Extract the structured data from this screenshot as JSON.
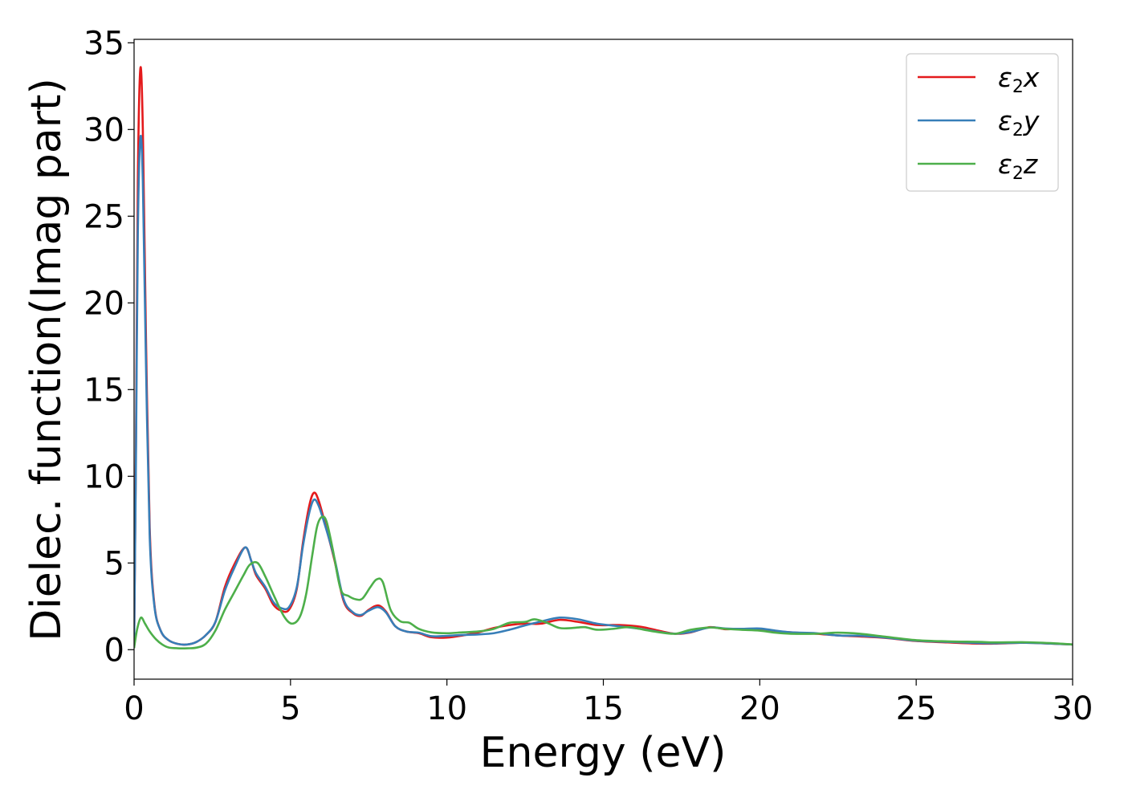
{
  "chart_data": {
    "type": "line",
    "xlabel": "Energy (eV)",
    "ylabel": "Dielec. function(Imag part)",
    "xlim": [
      0,
      30
    ],
    "ylim": [
      -1.7,
      35.2
    ],
    "xticks": [
      0,
      5,
      10,
      15,
      20,
      25,
      30
    ],
    "yticks": [
      0,
      5,
      10,
      15,
      20,
      25,
      30,
      35
    ],
    "grid": false,
    "legend_position": "top-right",
    "series": [
      {
        "name": "ε2x",
        "legend": {
          "symbol": "ε",
          "sub": "2",
          "tail": "x"
        },
        "color": "#e41a1c",
        "points": [
          [
            0,
            0.1
          ],
          [
            0.06,
            12
          ],
          [
            0.12,
            27
          ],
          [
            0.2,
            33.5
          ],
          [
            0.28,
            30
          ],
          [
            0.38,
            18
          ],
          [
            0.5,
            7
          ],
          [
            0.65,
            2.6
          ],
          [
            0.85,
            1.1
          ],
          [
            1.1,
            0.55
          ],
          [
            1.4,
            0.33
          ],
          [
            1.7,
            0.3
          ],
          [
            2.0,
            0.45
          ],
          [
            2.3,
            0.85
          ],
          [
            2.6,
            1.6
          ],
          [
            2.9,
            3.6
          ],
          [
            3.2,
            4.9
          ],
          [
            3.55,
            5.9
          ],
          [
            3.75,
            5.1
          ],
          [
            3.9,
            4.3
          ],
          [
            4.2,
            3.5
          ],
          [
            4.45,
            2.6
          ],
          [
            4.7,
            2.25
          ],
          [
            4.95,
            2.3
          ],
          [
            5.2,
            3.5
          ],
          [
            5.4,
            6.2
          ],
          [
            5.6,
            8.3
          ],
          [
            5.75,
            9.05
          ],
          [
            5.9,
            8.6
          ],
          [
            6.1,
            7.3
          ],
          [
            6.4,
            5.2
          ],
          [
            6.7,
            2.8
          ],
          [
            7.0,
            2.1
          ],
          [
            7.25,
            1.95
          ],
          [
            7.5,
            2.3
          ],
          [
            7.8,
            2.55
          ],
          [
            8.05,
            2.2
          ],
          [
            8.35,
            1.35
          ],
          [
            8.7,
            1.05
          ],
          [
            9.1,
            0.95
          ],
          [
            9.5,
            0.72
          ],
          [
            10.0,
            0.7
          ],
          [
            10.5,
            0.82
          ],
          [
            11.0,
            1.0
          ],
          [
            11.5,
            1.25
          ],
          [
            12.0,
            1.42
          ],
          [
            12.5,
            1.5
          ],
          [
            13.0,
            1.5
          ],
          [
            13.6,
            1.72
          ],
          [
            14.2,
            1.6
          ],
          [
            14.8,
            1.42
          ],
          [
            15.5,
            1.42
          ],
          [
            16.2,
            1.32
          ],
          [
            16.8,
            1.08
          ],
          [
            17.3,
            0.92
          ],
          [
            17.8,
            1.0
          ],
          [
            18.4,
            1.3
          ],
          [
            18.9,
            1.18
          ],
          [
            19.4,
            1.2
          ],
          [
            20.0,
            1.18
          ],
          [
            20.5,
            1.08
          ],
          [
            21.0,
            1.0
          ],
          [
            21.8,
            0.92
          ],
          [
            22.5,
            0.82
          ],
          [
            23.2,
            0.76
          ],
          [
            24.0,
            0.68
          ],
          [
            25.0,
            0.5
          ],
          [
            26.0,
            0.42
          ],
          [
            27.0,
            0.35
          ],
          [
            27.5,
            0.35
          ],
          [
            28.5,
            0.4
          ],
          [
            29.3,
            0.35
          ],
          [
            30,
            0.3
          ]
        ]
      },
      {
        "name": "ε2y",
        "legend": {
          "symbol": "ε",
          "sub": "2",
          "tail": "y"
        },
        "color": "#377eb8",
        "points": [
          [
            0,
            0.1
          ],
          [
            0.06,
            11
          ],
          [
            0.12,
            24
          ],
          [
            0.2,
            29.5
          ],
          [
            0.28,
            27
          ],
          [
            0.38,
            16.5
          ],
          [
            0.5,
            6.5
          ],
          [
            0.65,
            2.5
          ],
          [
            0.85,
            1.1
          ],
          [
            1.1,
            0.55
          ],
          [
            1.4,
            0.33
          ],
          [
            1.7,
            0.3
          ],
          [
            2.0,
            0.45
          ],
          [
            2.3,
            0.85
          ],
          [
            2.6,
            1.6
          ],
          [
            2.9,
            3.4
          ],
          [
            3.2,
            4.7
          ],
          [
            3.55,
            5.9
          ],
          [
            3.75,
            5.1
          ],
          [
            3.9,
            4.4
          ],
          [
            4.2,
            3.6
          ],
          [
            4.45,
            2.75
          ],
          [
            4.7,
            2.4
          ],
          [
            4.95,
            2.45
          ],
          [
            5.2,
            3.6
          ],
          [
            5.4,
            6.0
          ],
          [
            5.6,
            7.9
          ],
          [
            5.75,
            8.65
          ],
          [
            5.9,
            8.3
          ],
          [
            6.1,
            7.2
          ],
          [
            6.4,
            5.3
          ],
          [
            6.7,
            2.9
          ],
          [
            7.0,
            2.15
          ],
          [
            7.25,
            2.0
          ],
          [
            7.5,
            2.25
          ],
          [
            7.8,
            2.45
          ],
          [
            8.05,
            2.15
          ],
          [
            8.35,
            1.35
          ],
          [
            8.7,
            1.05
          ],
          [
            9.1,
            0.98
          ],
          [
            9.5,
            0.78
          ],
          [
            10.0,
            0.8
          ],
          [
            10.5,
            0.85
          ],
          [
            11.0,
            0.88
          ],
          [
            11.5,
            0.95
          ],
          [
            12.0,
            1.15
          ],
          [
            12.5,
            1.4
          ],
          [
            13.0,
            1.62
          ],
          [
            13.6,
            1.85
          ],
          [
            14.2,
            1.75
          ],
          [
            14.8,
            1.5
          ],
          [
            15.5,
            1.35
          ],
          [
            16.2,
            1.2
          ],
          [
            16.8,
            1.02
          ],
          [
            17.3,
            0.92
          ],
          [
            17.8,
            1.02
          ],
          [
            18.4,
            1.28
          ],
          [
            18.9,
            1.22
          ],
          [
            19.4,
            1.2
          ],
          [
            20.0,
            1.22
          ],
          [
            20.5,
            1.1
          ],
          [
            21.0,
            1.0
          ],
          [
            21.8,
            0.95
          ],
          [
            22.5,
            0.82
          ],
          [
            23.2,
            0.8
          ],
          [
            24.0,
            0.7
          ],
          [
            25.0,
            0.52
          ],
          [
            26.0,
            0.45
          ],
          [
            27.0,
            0.38
          ],
          [
            27.5,
            0.37
          ],
          [
            28.5,
            0.4
          ],
          [
            29.3,
            0.35
          ],
          [
            30,
            0.3
          ]
        ]
      },
      {
        "name": "ε2z",
        "legend": {
          "symbol": "ε",
          "sub": "2",
          "tail": "z"
        },
        "color": "#4daf4a",
        "points": [
          [
            0,
            0.1
          ],
          [
            0.1,
            1.2
          ],
          [
            0.22,
            1.85
          ],
          [
            0.35,
            1.5
          ],
          [
            0.5,
            1.05
          ],
          [
            0.7,
            0.6
          ],
          [
            0.9,
            0.3
          ],
          [
            1.1,
            0.13
          ],
          [
            1.4,
            0.08
          ],
          [
            1.7,
            0.08
          ],
          [
            2.0,
            0.12
          ],
          [
            2.3,
            0.35
          ],
          [
            2.6,
            1.1
          ],
          [
            2.9,
            2.3
          ],
          [
            3.2,
            3.3
          ],
          [
            3.5,
            4.3
          ],
          [
            3.7,
            4.9
          ],
          [
            3.95,
            5.0
          ],
          [
            4.2,
            4.2
          ],
          [
            4.5,
            3.0
          ],
          [
            4.8,
            1.9
          ],
          [
            5.05,
            1.5
          ],
          [
            5.3,
            1.9
          ],
          [
            5.5,
            3.2
          ],
          [
            5.7,
            5.5
          ],
          [
            5.85,
            7.1
          ],
          [
            6.0,
            7.65
          ],
          [
            6.15,
            7.4
          ],
          [
            6.35,
            5.8
          ],
          [
            6.6,
            3.5
          ],
          [
            6.85,
            3.1
          ],
          [
            7.1,
            2.9
          ],
          [
            7.3,
            2.95
          ],
          [
            7.55,
            3.6
          ],
          [
            7.75,
            4.05
          ],
          [
            7.95,
            3.9
          ],
          [
            8.2,
            2.3
          ],
          [
            8.5,
            1.65
          ],
          [
            8.8,
            1.55
          ],
          [
            9.1,
            1.2
          ],
          [
            9.5,
            1.0
          ],
          [
            10.0,
            0.95
          ],
          [
            10.5,
            1.0
          ],
          [
            11.0,
            1.05
          ],
          [
            11.5,
            1.2
          ],
          [
            12.0,
            1.55
          ],
          [
            12.5,
            1.6
          ],
          [
            12.8,
            1.75
          ],
          [
            13.2,
            1.55
          ],
          [
            13.6,
            1.25
          ],
          [
            14.0,
            1.25
          ],
          [
            14.4,
            1.3
          ],
          [
            14.8,
            1.15
          ],
          [
            15.3,
            1.2
          ],
          [
            15.8,
            1.3
          ],
          [
            16.3,
            1.15
          ],
          [
            16.8,
            1.0
          ],
          [
            17.3,
            0.92
          ],
          [
            17.8,
            1.15
          ],
          [
            18.4,
            1.28
          ],
          [
            18.9,
            1.2
          ],
          [
            19.4,
            1.15
          ],
          [
            20.0,
            1.1
          ],
          [
            20.5,
            0.98
          ],
          [
            21.0,
            0.92
          ],
          [
            21.8,
            0.92
          ],
          [
            22.5,
            0.98
          ],
          [
            23.2,
            0.92
          ],
          [
            24.0,
            0.75
          ],
          [
            25.0,
            0.55
          ],
          [
            26.0,
            0.48
          ],
          [
            27.0,
            0.45
          ],
          [
            27.5,
            0.42
          ],
          [
            28.5,
            0.43
          ],
          [
            29.3,
            0.38
          ],
          [
            30,
            0.3
          ]
        ]
      }
    ]
  }
}
